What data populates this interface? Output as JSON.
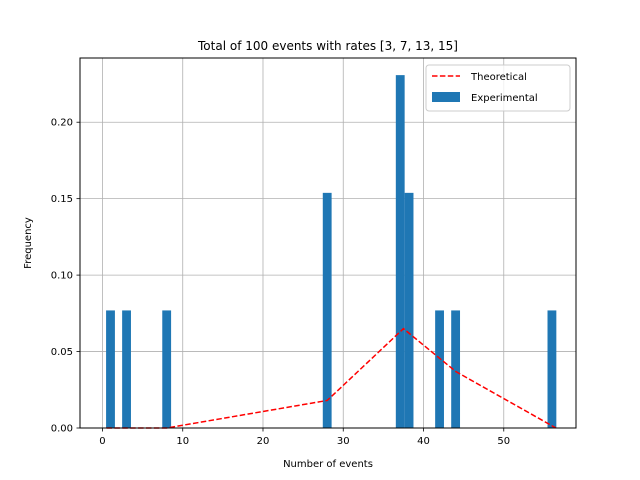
{
  "chart_data": {
    "type": "bar",
    "title": "Total of 100 events with rates [3, 7, 13, 15]",
    "xlabel": "Number of events",
    "ylabel": "Frequency",
    "xlim": [
      -2.8,
      59.0
    ],
    "ylim": [
      0.0,
      0.242
    ],
    "grid": true,
    "legend_position": "top-right",
    "x_ticks": [
      0,
      10,
      20,
      30,
      40,
      50
    ],
    "y_ticks": [
      0.0,
      0.05,
      0.1,
      0.15,
      0.2
    ],
    "x_tick_labels": [
      "0",
      "10",
      "20",
      "30",
      "40",
      "50"
    ],
    "y_tick_labels": [
      "0.00",
      "0.05",
      "0.10",
      "0.15",
      "0.20"
    ],
    "bin_width": 1.1,
    "series": [
      {
        "name": "Theoretical",
        "kind": "line",
        "style": "dashed",
        "color": "#ff0000",
        "x": [
          0.5,
          8.0,
          28.0,
          37.5,
          44.0,
          56.5
        ],
        "y": [
          0.0,
          0.0,
          0.018,
          0.065,
          0.037,
          0.0
        ]
      },
      {
        "name": "Experimental",
        "kind": "bar",
        "color": "#1f77b4",
        "x": [
          1.0,
          3.0,
          8.0,
          28.0,
          37.1,
          38.2,
          42.0,
          44.0,
          56.0
        ],
        "values": [
          0.0769,
          0.0769,
          0.0769,
          0.1538,
          0.2308,
          0.1538,
          0.0769,
          0.0769,
          0.0769
        ]
      }
    ]
  }
}
